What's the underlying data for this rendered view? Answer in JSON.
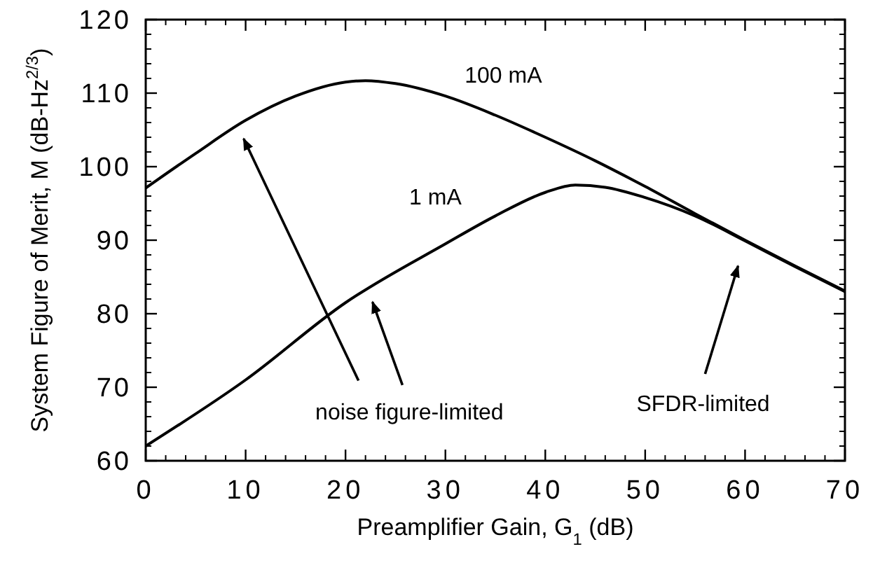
{
  "chart_data": {
    "type": "line",
    "xlabel": "Preamplifier Gain, G$_{1}$ (dB)",
    "ylabel": "System Figure of Merit, M (dB-Hz$^{2/3}$)",
    "xlim": [
      0,
      70
    ],
    "xticks": [
      0,
      10,
      20,
      30,
      40,
      50,
      60,
      70
    ],
    "ylim": [
      60,
      120
    ],
    "yticks": [
      60,
      70,
      80,
      90,
      100,
      110,
      120
    ],
    "grid": false,
    "marker": "none",
    "line_style": "solid",
    "series": [
      {
        "name": "100 mA",
        "color": "#000000",
        "x": [
          0,
          5,
          10,
          15,
          20,
          22,
          25,
          30,
          35,
          40,
          45,
          50,
          55,
          60,
          65,
          70
        ],
        "values": [
          97.1,
          101.8,
          106.3,
          109.6,
          111.5,
          111.7,
          111.3,
          109.6,
          107.0,
          104.0,
          100.8,
          97.3,
          93.6,
          90.0,
          86.5,
          83.1
        ]
      },
      {
        "name": "1 mA",
        "color": "#000000",
        "x": [
          0,
          10,
          20,
          30,
          35,
          40,
          43,
          46,
          50,
          55,
          60,
          65,
          70
        ],
        "values": [
          62.0,
          71.0,
          81.5,
          89.5,
          93.3,
          96.5,
          97.5,
          97.2,
          95.8,
          93.3,
          89.9,
          86.4,
          83.0
        ]
      }
    ],
    "annotations": [
      "noise figure-limited",
      "SFDR-limited"
    ]
  }
}
